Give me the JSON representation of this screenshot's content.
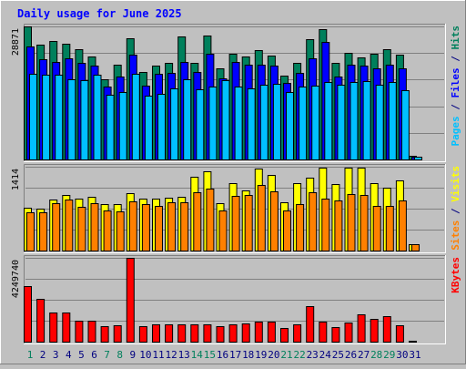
{
  "colors": {
    "background": "#c0c0c0",
    "panel": "#c0c0c0",
    "grid": "#808080",
    "title": "#0000ff",
    "hits": "#00805c",
    "files": "#0000ff",
    "pages": "#00c0ff",
    "visits": "#ffff00",
    "sites": "#ff8000",
    "kbytes": "#ff0000",
    "weekend_day": "#00805c",
    "weekday": "#000080"
  },
  "chart_data": {
    "type": "bar",
    "title": "Daily usage for June 2025",
    "categories": [
      "1",
      "2",
      "3",
      "4",
      "5",
      "6",
      "7",
      "8",
      "9",
      "10",
      "11",
      "12",
      "13",
      "14",
      "15",
      "16",
      "17",
      "18",
      "19",
      "20",
      "21",
      "22",
      "23",
      "24",
      "25",
      "26",
      "27",
      "28",
      "29",
      "30",
      "31"
    ],
    "weekend_days": [
      "1",
      "7",
      "8",
      "14",
      "15",
      "21",
      "22",
      "28",
      "29"
    ],
    "panels": [
      {
        "id": "top",
        "axis_max_label": "28871",
        "ymax": 28871,
        "side_label": {
          "parts": [
            {
              "text": "Pages",
              "color_key": "pages"
            },
            {
              "text": " / ",
              "color_key": "weekday"
            },
            {
              "text": "Files",
              "color_key": "files"
            },
            {
              "text": " / ",
              "color_key": "weekday"
            },
            {
              "text": "Hits",
              "color_key": "hits"
            }
          ]
        },
        "series": [
          {
            "name": "Hits",
            "color_key": "hits",
            "values": [
              28871,
              25000,
              25700,
              25200,
              23900,
              22400,
              17500,
              20500,
              26300,
              19000,
              20400,
              20900,
              26700,
              20900,
              26800,
              19700,
              22900,
              22400,
              23800,
              22600,
              18200,
              21000,
              26200,
              28300,
              21000,
              23200,
              22200,
              23000,
              24000,
              22800,
              800
            ]
          },
          {
            "name": "Files",
            "color_key": "files",
            "values": [
              24500,
              21700,
              21100,
              21900,
              21000,
              20300,
              15900,
              18000,
              22700,
              16000,
              18600,
              18800,
              21200,
              19000,
              23000,
              17600,
              21200,
              20500,
              20600,
              20400,
              16700,
              18800,
              22000,
              25600,
              18000,
              20500,
              20400,
              19800,
              20500,
              19800,
              600
            ]
          },
          {
            "name": "Pages",
            "color_key": "pages",
            "values": [
              18600,
              18400,
              18300,
              17500,
              17200,
              18400,
              14100,
              14600,
              18600,
              13900,
              14200,
              15400,
              17400,
              15300,
              15800,
              17300,
              15800,
              15400,
              16200,
              16400,
              14600,
              15800,
              16000,
              16900,
              16300,
              16800,
              17000,
              16300,
              16800,
              15000,
              500
            ]
          }
        ]
      },
      {
        "id": "middle",
        "axis_max_label": "1414",
        "ymax": 1414,
        "side_label": {
          "parts": [
            {
              "text": "Sites",
              "color_key": "sites"
            },
            {
              "text": " / ",
              "color_key": "weekday"
            },
            {
              "text": "Visits",
              "color_key": "visits"
            }
          ]
        },
        "series": [
          {
            "name": "Visits",
            "color_key": "visits",
            "values": [
              720,
              700,
              860,
              940,
              870,
              900,
              790,
              780,
              970,
              880,
              880,
              890,
              900,
              1240,
              1340,
              800,
              1140,
              1020,
              1380,
              1280,
              810,
              1140,
              1230,
              1400,
              1120,
              1400,
              1400,
              1130,
              1060,
              1180,
              100
            ]
          },
          {
            "name": "Sites",
            "color_key": "sites",
            "values": [
              650,
              650,
              800,
              860,
              740,
              800,
              680,
              660,
              830,
              780,
              760,
              810,
              820,
              990,
              1050,
              680,
              920,
              930,
              1100,
              1000,
              680,
              780,
              980,
              880,
              840,
              950,
              940,
              750,
              750,
              840,
              100
            ]
          }
        ]
      },
      {
        "id": "bottom",
        "axis_max_label": "4249740",
        "ymax": 4249740,
        "side_label": {
          "parts": [
            {
              "text": "KBytes",
              "color_key": "kbytes"
            }
          ]
        },
        "series": [
          {
            "name": "KBytes",
            "color_key": "kbytes",
            "values": [
              2800000,
              2160000,
              1480000,
              1480000,
              1080000,
              1040000,
              790000,
              810000,
              4249740,
              800000,
              870000,
              890000,
              870000,
              860000,
              900000,
              800000,
              860000,
              940000,
              1030000,
              1020000,
              690000,
              860000,
              1820000,
              1030000,
              760000,
              990000,
              1390000,
              1150000,
              1300000,
              830000,
              40000
            ]
          }
        ]
      }
    ]
  }
}
